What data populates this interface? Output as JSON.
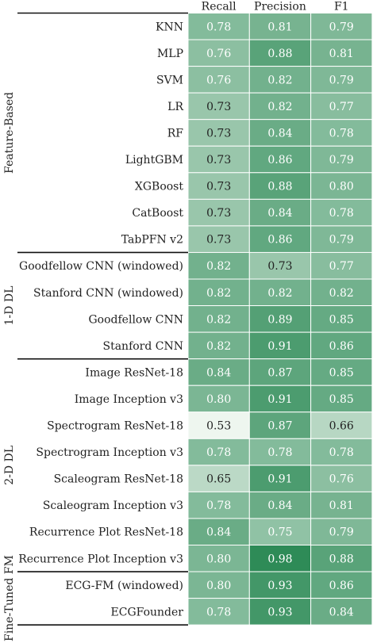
{
  "chart_data": {
    "type": "heatmap",
    "columns": [
      "Recall",
      "Precision",
      "F1"
    ],
    "groups": [
      {
        "name": "Feature-Based",
        "rows": [
          {
            "label": "KNN",
            "values": [
              "0.78",
              "0.81",
              "0.79"
            ]
          },
          {
            "label": "MLP",
            "values": [
              "0.76",
              "0.88",
              "0.81"
            ]
          },
          {
            "label": "SVM",
            "values": [
              "0.76",
              "0.82",
              "0.79"
            ]
          },
          {
            "label": "LR",
            "values": [
              "0.73",
              "0.82",
              "0.77"
            ]
          },
          {
            "label": "RF",
            "values": [
              "0.73",
              "0.84",
              "0.78"
            ]
          },
          {
            "label": "LightGBM",
            "values": [
              "0.73",
              "0.86",
              "0.79"
            ]
          },
          {
            "label": "XGBoost",
            "values": [
              "0.73",
              "0.88",
              "0.80"
            ]
          },
          {
            "label": "CatBoost",
            "values": [
              "0.73",
              "0.84",
              "0.78"
            ]
          },
          {
            "label": "TabPFN v2",
            "values": [
              "0.73",
              "0.86",
              "0.79"
            ]
          }
        ]
      },
      {
        "name": "1-D DL",
        "rows": [
          {
            "label": "Goodfellow CNN (windowed)",
            "values": [
              "0.82",
              "0.73",
              "0.77"
            ]
          },
          {
            "label": "Stanford CNN (windowed)",
            "values": [
              "0.82",
              "0.82",
              "0.82"
            ]
          },
          {
            "label": "Goodfellow CNN",
            "values": [
              "0.82",
              "0.89",
              "0.85"
            ]
          },
          {
            "label": "Stanford CNN",
            "values": [
              "0.82",
              "0.91",
              "0.86"
            ]
          }
        ]
      },
      {
        "name": "2-D DL",
        "rows": [
          {
            "label": "Image ResNet-18",
            "values": [
              "0.84",
              "0.87",
              "0.85"
            ]
          },
          {
            "label": "Image Inception v3",
            "values": [
              "0.80",
              "0.91",
              "0.85"
            ]
          },
          {
            "label": "Spectrogram ResNet-18",
            "values": [
              "0.53",
              "0.87",
              "0.66"
            ]
          },
          {
            "label": "Spectrogram Inception v3",
            "values": [
              "0.78",
              "0.78",
              "0.78"
            ]
          },
          {
            "label": "Scaleogram ResNet-18",
            "values": [
              "0.65",
              "0.91",
              "0.76"
            ]
          },
          {
            "label": "Scaleogram Inception v3",
            "values": [
              "0.78",
              "0.84",
              "0.81"
            ]
          },
          {
            "label": "Recurrence Plot ResNet-18",
            "values": [
              "0.84",
              "0.75",
              "0.79"
            ]
          },
          {
            "label": "Recurrence Plot Inception v3",
            "values": [
              "0.80",
              "0.98",
              "0.88"
            ]
          }
        ]
      },
      {
        "name": "Fine-Tuned FM",
        "rows": [
          {
            "label": "ECG-FM (windowed)",
            "values": [
              "0.80",
              "0.93",
              "0.86"
            ]
          },
          {
            "label": "ECGFounder",
            "values": [
              "0.78",
              "0.93",
              "0.84"
            ]
          }
        ]
      }
    ],
    "color_scale": {
      "low": "#eef6ef",
      "high": "#2e8b57",
      "text_dark": "#222222",
      "text_light": "#ffffff"
    }
  }
}
